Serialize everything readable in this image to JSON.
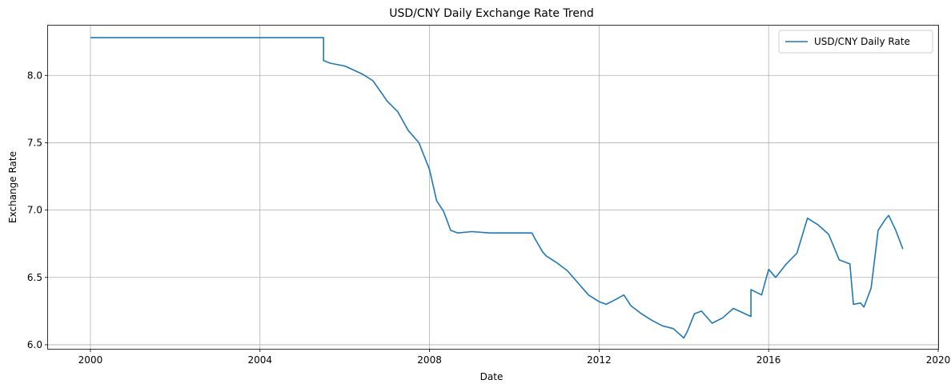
{
  "chart_data": {
    "type": "line",
    "title": "USD/CNY Daily Exchange Rate Trend",
    "xlabel": "Date",
    "ylabel": "Exchange Rate",
    "x_ticks": [
      "2000",
      "2004",
      "2008",
      "2012",
      "2016",
      "2020"
    ],
    "y_ticks": [
      "6.0",
      "6.5",
      "7.0",
      "7.5",
      "8.0"
    ],
    "xlim": [
      "1999-01",
      "2020-01"
    ],
    "ylim": [
      5.97,
      8.37
    ],
    "grid": true,
    "legend": "top-right",
    "color": "#1f77b4",
    "series": [
      {
        "name": "USD/CNY Daily Rate",
        "x": [
          "2000-01",
          "2000-06",
          "2001-01",
          "2002-01",
          "2003-01",
          "2004-01",
          "2005-01",
          "2005-07",
          "2005-07",
          "2005-09",
          "2006-01",
          "2006-06",
          "2006-09",
          "2007-01",
          "2007-04",
          "2007-07",
          "2007-10",
          "2008-01",
          "2008-03",
          "2008-05",
          "2008-07",
          "2008-09",
          "2009-01",
          "2009-06",
          "2010-01",
          "2010-06",
          "2010-07",
          "2010-09",
          "2010-10",
          "2011-01",
          "2011-04",
          "2011-07",
          "2011-10",
          "2012-01",
          "2012-03",
          "2012-06",
          "2012-08",
          "2012-10",
          "2013-01",
          "2013-04",
          "2013-07",
          "2013-10",
          "2014-01",
          "2014-02",
          "2014-04",
          "2014-06",
          "2014-09",
          "2014-12",
          "2015-03",
          "2015-08",
          "2015-08",
          "2015-11",
          "2016-01",
          "2016-03",
          "2016-06",
          "2016-09",
          "2016-12",
          "2017-03",
          "2017-06",
          "2017-09",
          "2017-12",
          "2018-01",
          "2018-03",
          "2018-04",
          "2018-06",
          "2018-08",
          "2018-10",
          "2018-11",
          "2019-01",
          "2019-03"
        ],
        "values": [
          8.28,
          8.28,
          8.28,
          8.28,
          8.28,
          8.28,
          8.28,
          8.28,
          8.11,
          8.09,
          8.07,
          8.01,
          7.96,
          7.81,
          7.73,
          7.59,
          7.5,
          7.3,
          7.07,
          6.99,
          6.85,
          6.83,
          6.84,
          6.83,
          6.83,
          6.83,
          6.78,
          6.69,
          6.66,
          6.61,
          6.55,
          6.46,
          6.37,
          6.32,
          6.3,
          6.34,
          6.37,
          6.29,
          6.23,
          6.18,
          6.14,
          6.12,
          6.05,
          6.1,
          6.23,
          6.25,
          6.16,
          6.2,
          6.27,
          6.21,
          6.41,
          6.37,
          6.56,
          6.5,
          6.6,
          6.68,
          6.94,
          6.89,
          6.82,
          6.63,
          6.6,
          6.3,
          6.31,
          6.28,
          6.42,
          6.85,
          6.93,
          6.96,
          6.85,
          6.71
        ]
      }
    ]
  }
}
